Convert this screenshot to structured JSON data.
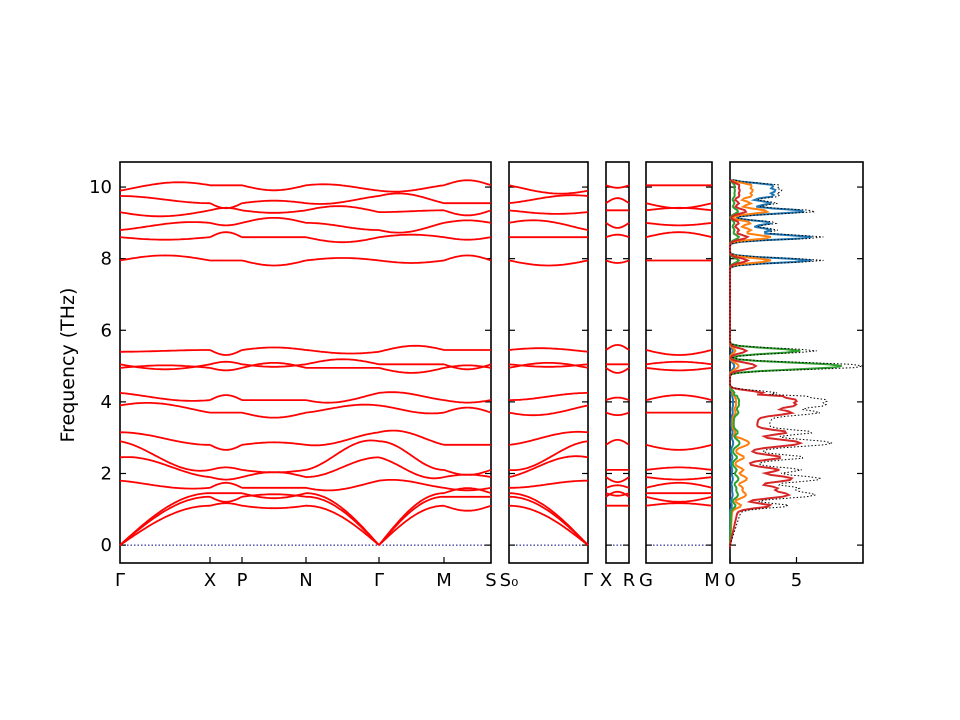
{
  "chart_data": {
    "type": "line",
    "ylabel": "Frequency (THz)",
    "ylim": [
      -0.5,
      10.7
    ],
    "yticks": [
      0,
      2,
      4,
      6,
      8,
      10
    ],
    "band_color": "#ff0000",
    "zero_line_color": "#00008b",
    "band_panels": [
      {
        "ticks": [
          "Γ",
          "X",
          "P",
          "N",
          "Γ",
          "M",
          "S"
        ]
      },
      {
        "ticks": [
          "S₀",
          "Γ"
        ]
      },
      {
        "ticks": [
          "X",
          "R"
        ]
      },
      {
        "ticks": [
          "G",
          "M"
        ]
      }
    ],
    "dos_panel": {
      "xticks": [
        "0",
        "5"
      ],
      "xlim": [
        0,
        10
      ],
      "series_colors": [
        "#1f77b4",
        "#ff7f0e",
        "#2ca02c",
        "#d62728"
      ],
      "total_line_color": "#000000"
    },
    "branches_at_gamma": [
      0,
      0,
      0,
      1.8,
      2.45,
      2.9,
      3.15,
      3.9,
      4.25,
      4.95,
      5.05,
      5.4,
      7.95,
      8.6,
      8.8,
      9.3,
      9.75,
      9.9
    ],
    "branches_at_zone_edge": [
      1.1,
      1.35,
      1.45,
      1.6,
      1.9,
      2.1,
      2.8,
      3.7,
      4.05,
      4.95,
      5.05,
      5.45,
      7.95,
      8.6,
      9.0,
      9.35,
      9.55,
      10.05
    ]
  }
}
